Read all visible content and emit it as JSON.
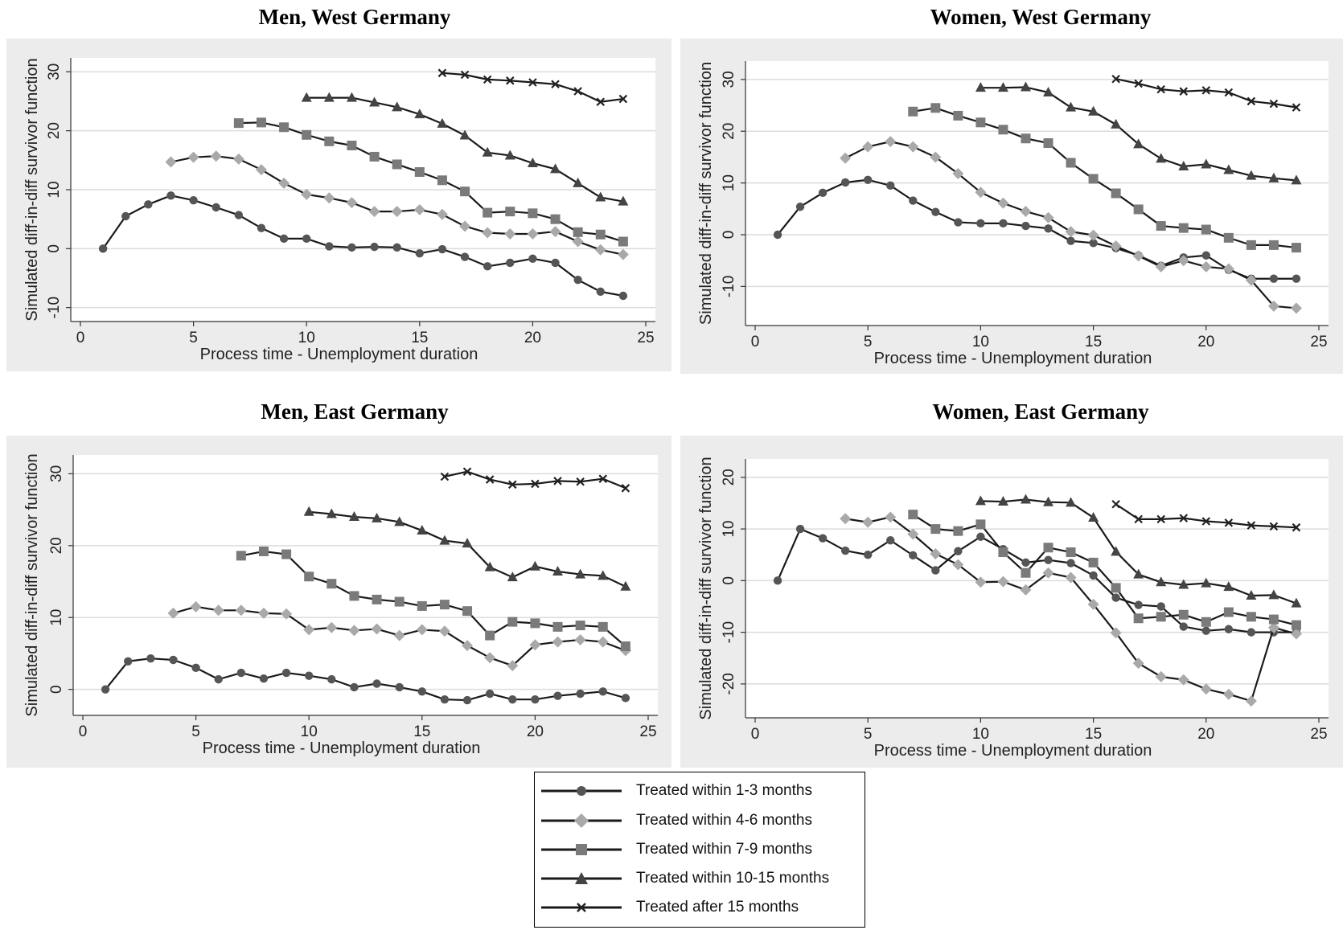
{
  "chart_data": [
    {
      "type": "line",
      "title": "Men, West Germany",
      "xlabel": "Process time  - Unemployment duration",
      "ylabel": "Simulated diff-in-diff survivor function",
      "xlim": [
        0,
        25
      ],
      "ylim": [
        -11,
        31
      ],
      "xticks": [
        0,
        5,
        10,
        15,
        20,
        25
      ],
      "yticks": [
        -10,
        0,
        10,
        20,
        30
      ],
      "grid": true,
      "series": [
        {
          "name": "Treated within 1-3 months",
          "x": [
            1,
            2,
            3,
            4,
            5,
            6,
            7,
            8,
            9,
            10,
            11,
            12,
            13,
            14,
            15,
            16,
            17,
            18,
            19,
            20,
            21,
            22,
            23,
            24
          ],
          "y": [
            0,
            5.5,
            7.5,
            9,
            8.2,
            7,
            5.7,
            3.5,
            1.7,
            1.7,
            0.4,
            0.2,
            0.3,
            0.2,
            -0.8,
            -0.1,
            -1.4,
            -3,
            -2.4,
            -1.7,
            -2.4,
            -5.3,
            -7.3,
            -8
          ]
        },
        {
          "name": "Treated within 4-6 months",
          "x": [
            4,
            5,
            6,
            7,
            8,
            9,
            10,
            11,
            12,
            13,
            14,
            15,
            16,
            17,
            18,
            19,
            20,
            21,
            22,
            23,
            24
          ],
          "y": [
            14.7,
            15.5,
            15.7,
            15.2,
            13.4,
            11.1,
            9.2,
            8.6,
            7.8,
            6.3,
            6.3,
            6.6,
            5.8,
            3.8,
            2.7,
            2.5,
            2.5,
            2.9,
            1.2,
            -0.2,
            -1
          ]
        },
        {
          "name": "Treated within 7-9 months",
          "x": [
            7,
            8,
            9,
            10,
            11,
            12,
            13,
            14,
            15,
            16,
            17,
            18,
            19,
            20,
            21,
            22,
            23,
            24
          ],
          "y": [
            21.3,
            21.4,
            20.6,
            19.3,
            18.2,
            17.5,
            15.6,
            14.3,
            13,
            11.6,
            9.7,
            6.1,
            6.3,
            6,
            5,
            2.8,
            2.4,
            1.2
          ]
        },
        {
          "name": "Treated within 10-15 months",
          "x": [
            10,
            11,
            12,
            13,
            14,
            15,
            16,
            17,
            18,
            19,
            20,
            21,
            22,
            23,
            24
          ],
          "y": [
            25.6,
            25.6,
            25.6,
            24.8,
            24,
            22.8,
            21.2,
            19.2,
            16.3,
            15.8,
            14.5,
            13.5,
            11.1,
            8.7,
            8
          ]
        },
        {
          "name": "Treated after 15 months",
          "x": [
            16,
            17,
            18,
            19,
            20,
            21,
            22,
            23,
            24
          ],
          "y": [
            29.8,
            29.5,
            28.7,
            28.5,
            28.2,
            27.9,
            26.7,
            24.9,
            25.4
          ]
        }
      ]
    },
    {
      "type": "line",
      "title": "Women, West Germany",
      "xlabel": "Process time  - Unemployment duration",
      "ylabel": "Simulated diff-in-diff survivor function",
      "xlim": [
        0,
        25
      ],
      "ylim": [
        -16,
        32
      ],
      "xticks": [
        0,
        5,
        10,
        15,
        20,
        25
      ],
      "yticks": [
        -10,
        0,
        10,
        20,
        30
      ],
      "grid": true,
      "series": [
        {
          "name": "Treated within 1-3 months",
          "x": [
            1,
            2,
            3,
            4,
            5,
            6,
            7,
            8,
            9,
            10,
            11,
            12,
            13,
            14,
            15,
            16,
            17,
            18,
            19,
            20,
            21,
            22,
            23,
            24
          ],
          "y": [
            0,
            5.4,
            8.1,
            10.1,
            10.6,
            9.5,
            6.6,
            4.4,
            2.4,
            2.2,
            2.2,
            1.7,
            1.2,
            -1.2,
            -1.6,
            -2.6,
            -4,
            -6,
            -4.4,
            -4,
            -6.8,
            -8.5,
            -8.5,
            -8.5
          ]
        },
        {
          "name": "Treated within 4-6 months",
          "x": [
            4,
            5,
            6,
            7,
            8,
            9,
            10,
            11,
            12,
            13,
            14,
            15,
            16,
            17,
            18,
            19,
            20,
            21,
            22,
            23,
            24
          ],
          "y": [
            14.8,
            17,
            18,
            17,
            15,
            11.8,
            8.2,
            6.1,
            4.5,
            3.3,
            0.6,
            -0.1,
            -2.2,
            -4.1,
            -6.2,
            -5,
            -6.2,
            -6.6,
            -8.8,
            -13.8,
            -14.2
          ]
        },
        {
          "name": "Treated within 7-9 months",
          "x": [
            7,
            8,
            9,
            10,
            11,
            12,
            13,
            14,
            15,
            16,
            17,
            18,
            19,
            20,
            21,
            22,
            23,
            24
          ],
          "y": [
            23.8,
            24.5,
            23,
            21.7,
            20.3,
            18.6,
            17.7,
            13.9,
            10.8,
            8,
            4.9,
            1.7,
            1.3,
            1,
            -0.6,
            -2,
            -2,
            -2.5
          ]
        },
        {
          "name": "Treated within 10-15 months",
          "x": [
            10,
            11,
            12,
            13,
            14,
            15,
            16,
            17,
            18,
            19,
            20,
            21,
            22,
            23,
            24
          ],
          "y": [
            28.4,
            28.4,
            28.5,
            27.5,
            24.6,
            23.8,
            21.3,
            17.5,
            14.7,
            13.2,
            13.6,
            12.5,
            11.4,
            10.9,
            10.5
          ]
        },
        {
          "name": "Treated after 15 months",
          "x": [
            16,
            17,
            18,
            19,
            20,
            21,
            22,
            23,
            24
          ],
          "y": [
            30.1,
            29.2,
            28.1,
            27.7,
            27.9,
            27.5,
            25.8,
            25.3,
            24.6
          ]
        }
      ]
    },
    {
      "type": "line",
      "title": "Men, East Germany",
      "xlabel": "Process time  - Unemployment duration",
      "ylabel": "Simulated diff-in-diff survivor function",
      "xlim": [
        0,
        25
      ],
      "ylim": [
        -2.5,
        31.5
      ],
      "xticks": [
        0,
        5,
        10,
        15,
        20,
        25
      ],
      "yticks": [
        0,
        10,
        20,
        30
      ],
      "grid": true,
      "series": [
        {
          "name": "Treated within 1-3 months",
          "x": [
            1,
            2,
            3,
            4,
            5,
            6,
            7,
            8,
            9,
            10,
            11,
            12,
            13,
            14,
            15,
            16,
            17,
            18,
            19,
            20,
            21,
            22,
            23,
            24
          ],
          "y": [
            0,
            3.9,
            4.3,
            4.1,
            3,
            1.4,
            2.3,
            1.5,
            2.3,
            1.9,
            1.4,
            0.3,
            0.8,
            0.3,
            -0.3,
            -1.4,
            -1.5,
            -0.6,
            -1.4,
            -1.4,
            -0.9,
            -0.6,
            -0.3,
            -1.2
          ]
        },
        {
          "name": "Treated within 4-6 months",
          "x": [
            4,
            5,
            6,
            7,
            8,
            9,
            10,
            11,
            12,
            13,
            14,
            15,
            16,
            17,
            18,
            19,
            20,
            21,
            22,
            23,
            24
          ],
          "y": [
            10.6,
            11.5,
            11,
            11,
            10.6,
            10.5,
            8.3,
            8.6,
            8.2,
            8.4,
            7.5,
            8.3,
            8.1,
            6.1,
            4.4,
            3.3,
            6.2,
            6.6,
            6.9,
            6.6,
            5.4
          ]
        },
        {
          "name": "Treated within 7-9 months",
          "x": [
            7,
            8,
            9,
            10,
            11,
            12,
            13,
            14,
            15,
            16,
            17,
            18,
            19,
            20,
            21,
            22,
            23,
            24
          ],
          "y": [
            18.6,
            19.2,
            18.8,
            15.7,
            14.7,
            13,
            12.5,
            12.2,
            11.6,
            11.8,
            10.9,
            7.5,
            9.4,
            9.2,
            8.7,
            8.9,
            8.7,
            6
          ]
        },
        {
          "name": "Treated within 10-15 months",
          "x": [
            10,
            11,
            12,
            13,
            14,
            15,
            16,
            17,
            18,
            19,
            20,
            21,
            22,
            23,
            24
          ],
          "y": [
            24.7,
            24.4,
            24,
            23.8,
            23.3,
            22.1,
            20.7,
            20.3,
            17,
            15.6,
            17.1,
            16.4,
            16,
            15.8,
            14.3
          ]
        },
        {
          "name": "Treated after 15 months",
          "x": [
            16,
            17,
            18,
            19,
            20,
            21,
            22,
            23,
            24
          ],
          "y": [
            29.6,
            30.3,
            29.2,
            28.5,
            28.6,
            29,
            28.9,
            29.3,
            28
          ]
        }
      ]
    },
    {
      "type": "line",
      "title": "Women, East Germany",
      "xlabel": "Process time  - Unemployment duration",
      "ylabel": "Simulated diff-in-diff survivor function",
      "xlim": [
        0,
        25
      ],
      "ylim": [
        -25,
        22
      ],
      "xticks": [
        0,
        5,
        10,
        15,
        20,
        25
      ],
      "yticks": [
        -20,
        -10,
        0,
        10,
        20
      ],
      "grid": true,
      "series": [
        {
          "name": "Treated within 1-3 months",
          "x": [
            1,
            2,
            3,
            4,
            5,
            6,
            7,
            8,
            9,
            10,
            11,
            12,
            13,
            14,
            15,
            16,
            17,
            18,
            19,
            20,
            21,
            22,
            23,
            24
          ],
          "y": [
            0,
            10,
            8.2,
            5.8,
            5,
            7.8,
            4.9,
            2,
            5.7,
            8.5,
            6.1,
            3.5,
            4,
            3.4,
            1,
            -3.3,
            -4.7,
            -5,
            -8.9,
            -9.7,
            -9.4,
            -10,
            -10,
            -10
          ]
        },
        {
          "name": "Treated within 4-6 months",
          "x": [
            4,
            5,
            6,
            7,
            8,
            9,
            10,
            11,
            12,
            13,
            14,
            15,
            16,
            17,
            18,
            19,
            20,
            21,
            22,
            23,
            24
          ],
          "y": [
            12,
            11.3,
            12.3,
            9,
            5.2,
            3.1,
            -0.3,
            -0.2,
            -1.8,
            1.5,
            0.6,
            -4.6,
            -10.1,
            -16,
            -18.6,
            -19.2,
            -21,
            -22,
            -23.3,
            -9.1,
            -10.3
          ]
        },
        {
          "name": "Treated within 7-9 months",
          "x": [
            7,
            8,
            9,
            10,
            11,
            12,
            13,
            14,
            15,
            16,
            17,
            18,
            19,
            20,
            21,
            22,
            23,
            24
          ],
          "y": [
            12.8,
            10,
            9.6,
            10.9,
            5.5,
            1.5,
            6.4,
            5.5,
            3.5,
            -1.4,
            -7.3,
            -7,
            -6.6,
            -8,
            -6.1,
            -7,
            -7.5,
            -8.6
          ]
        },
        {
          "name": "Treated within 10-15 months",
          "x": [
            10,
            11,
            12,
            13,
            14,
            15,
            16,
            17,
            18,
            19,
            20,
            21,
            22,
            23,
            24
          ],
          "y": [
            15.4,
            15.3,
            15.7,
            15.2,
            15.1,
            12.2,
            5.6,
            1.2,
            -0.3,
            -0.8,
            -0.5,
            -1.2,
            -2.9,
            -2.8,
            -4.4
          ]
        },
        {
          "name": "Treated after 15 months",
          "x": [
            16,
            17,
            18,
            19,
            20,
            21,
            22,
            23,
            24
          ],
          "y": [
            14.8,
            11.9,
            11.9,
            12.1,
            11.5,
            11.2,
            10.7,
            10.5,
            10.3
          ]
        }
      ]
    }
  ],
  "legend": {
    "items": [
      {
        "label": "Treated within 1-3 months",
        "marker": "circle",
        "color": "#555555"
      },
      {
        "label": "Treated within 4-6 months",
        "marker": "diamond",
        "color": "#a9a9a9"
      },
      {
        "label": "Treated within 7-9 months",
        "marker": "square",
        "color": "#7a7a7a"
      },
      {
        "label": "Treated within 10-15 months",
        "marker": "triangle",
        "color": "#444444"
      },
      {
        "label": "Treated after 15 months",
        "marker": "x",
        "color": "#222222"
      }
    ]
  },
  "colors": {
    "panel_background": "#ececec",
    "plot_background": "#ffffff",
    "gridline": "#dcdcdc",
    "line": "#1a1a1a"
  }
}
